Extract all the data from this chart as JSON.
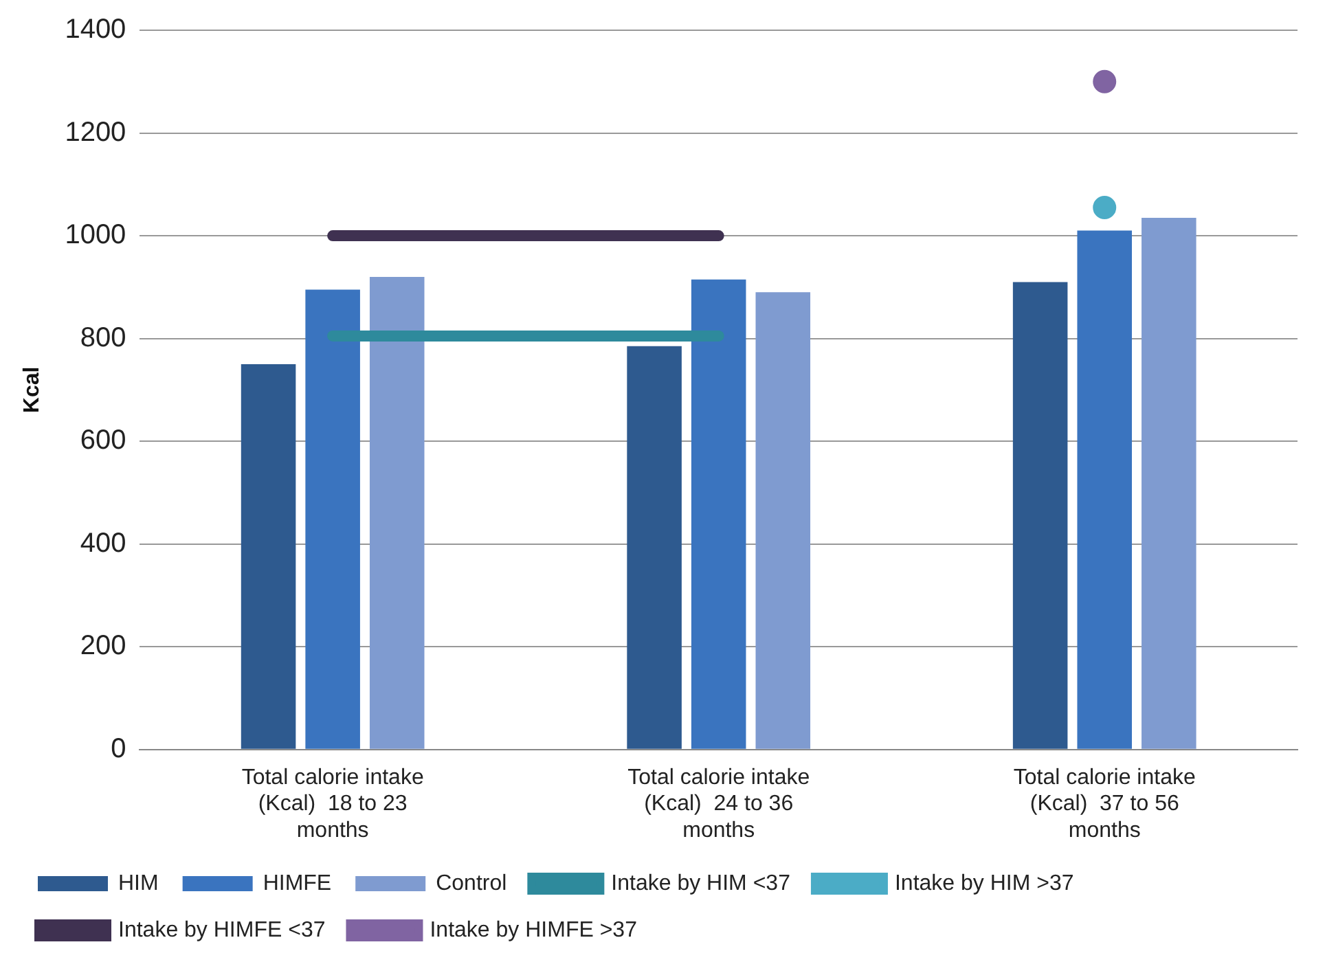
{
  "chart_data": {
    "type": "bar",
    "ylabel": "Kcal",
    "categories": [
      "Total calorie intake (Kcal)  18 to 23 months",
      "Total calorie intake (Kcal)  24 to 36 months",
      "Total calorie intake (Kcal)  37 to 56 months"
    ],
    "series": [
      {
        "name": "HIM",
        "color": "#2e5a8f",
        "values": [
          750,
          785,
          910
        ]
      },
      {
        "name": "HIMFE",
        "color": "#3a74bf",
        "values": [
          895,
          915,
          1010
        ]
      },
      {
        "name": "Control",
        "color": "#7f9bd0",
        "values": [
          920,
          890,
          1035
        ]
      },
      {
        "name": "Intake by HIM <37",
        "type": "line",
        "color": "#2e8a9c",
        "values": [
          805,
          805,
          null
        ]
      },
      {
        "name": "Intake by HIM >37",
        "type": "line",
        "color": "#4bacc6",
        "marker": "circle",
        "values": [
          null,
          null,
          1055
        ]
      },
      {
        "name": "Intake by HIMFE <37",
        "type": "line",
        "color": "#3f3151",
        "values": [
          1000,
          1000,
          null
        ]
      },
      {
        "name": "Intake by HIMFE >37",
        "type": "line",
        "color": "#8064a2",
        "marker": "circle",
        "values": [
          null,
          null,
          1300
        ]
      }
    ],
    "ylim": [
      0,
      1400
    ],
    "yticks": [
      0,
      200,
      400,
      600,
      800,
      1000,
      1200,
      1400
    ],
    "grid": "y",
    "legend": "bottom"
  }
}
